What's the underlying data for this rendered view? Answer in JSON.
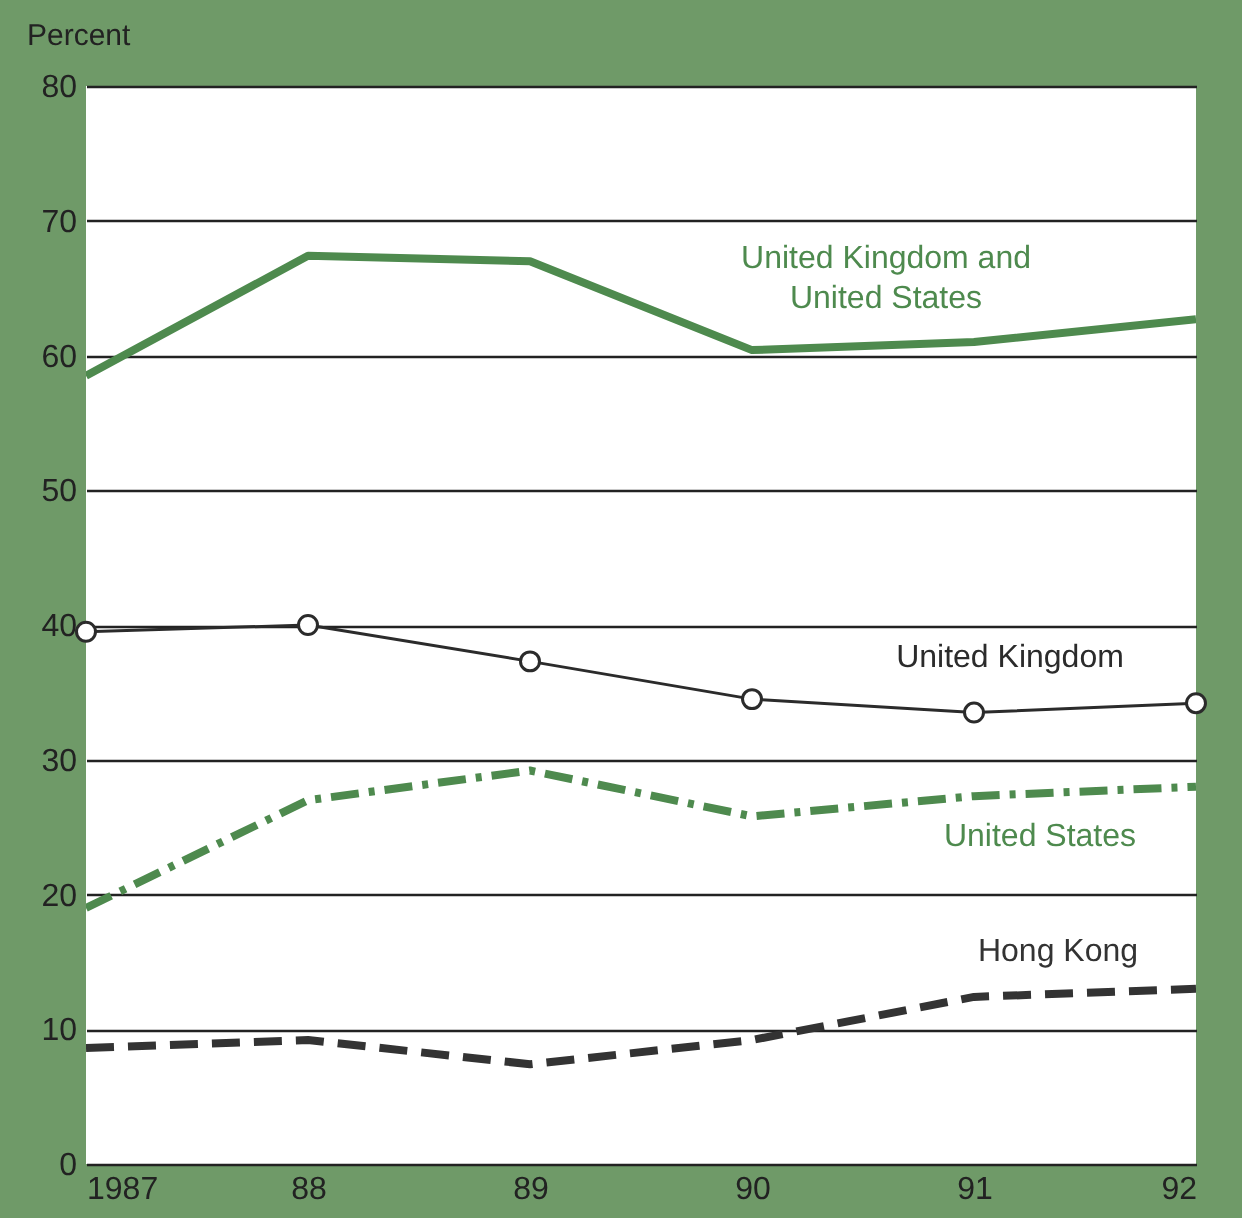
{
  "chart_data": {
    "type": "line",
    "ylabel": "Percent",
    "x": [
      1987,
      1988,
      1989,
      1990,
      1991,
      1992
    ],
    "xlim": [
      1987,
      1992
    ],
    "xticks": [
      {
        "value": 1987,
        "label": "1987"
      },
      {
        "value": 1988,
        "label": "88"
      },
      {
        "value": 1989,
        "label": "89"
      },
      {
        "value": 1990,
        "label": "90"
      },
      {
        "value": 1991,
        "label": "91"
      },
      {
        "value": 1992,
        "label": "92"
      }
    ],
    "ylim": [
      0,
      80
    ],
    "yticks": [
      0,
      10,
      20,
      30,
      40,
      50,
      60,
      70,
      80
    ],
    "grid": "y",
    "series": [
      {
        "name": "United Kingdom and\nUnited States",
        "color": "#4e8a4e",
        "line_style": "solid",
        "marker": "none",
        "values": [
          58.5,
          67.4,
          67,
          60.4,
          61,
          62.7
        ]
      },
      {
        "name": "United Kingdom",
        "color": "#2b2b2b",
        "line_style": "solid",
        "marker": "circle",
        "values": [
          39.5,
          40,
          37.3,
          34.5,
          33.5,
          34.2
        ]
      },
      {
        "name": "United States",
        "color": "#4e8a4e",
        "line_style": "dashdot",
        "marker": "none",
        "values": [
          19,
          27,
          29.2,
          25.8,
          27.3,
          28
        ]
      },
      {
        "name": "Hong Kong",
        "color": "#333333",
        "line_style": "dashed",
        "marker": "none",
        "values": [
          8.6,
          9.2,
          7.4,
          9.2,
          12.4,
          13
        ]
      }
    ]
  }
}
